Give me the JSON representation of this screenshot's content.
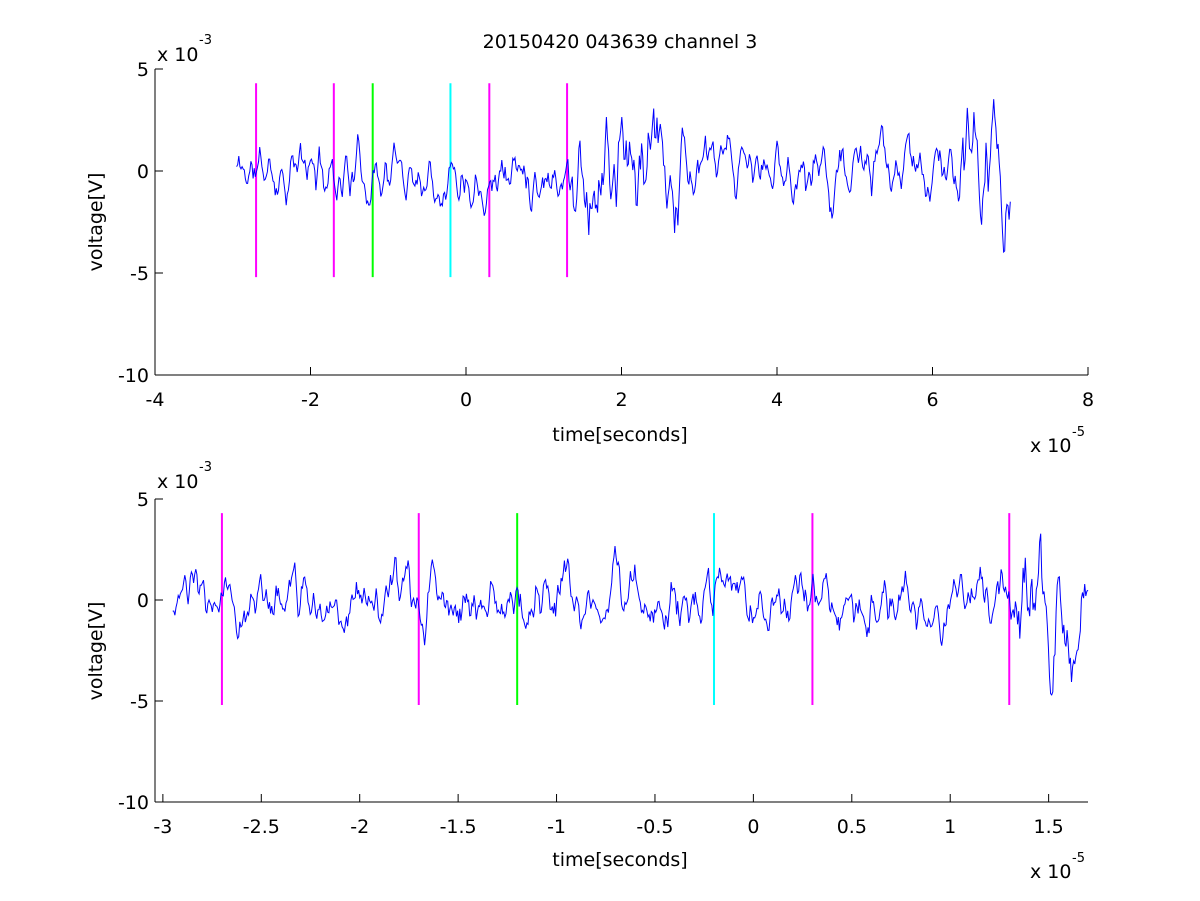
{
  "chart_data": [
    {
      "type": "line",
      "title": "20150420 043639 channel 3",
      "xlabel": "time[seconds]",
      "ylabel": "voltage[V]",
      "x_multiplier": "x 10",
      "x_exponent": "-5",
      "y_multiplier": "x 10",
      "y_exponent": "-3",
      "xlim": [
        -4,
        8
      ],
      "ylim": [
        -10,
        5
      ],
      "xticks": [
        -4,
        -2,
        0,
        2,
        4,
        6,
        8
      ],
      "xtick_labels": [
        "-4",
        "-2",
        "0",
        "2",
        "4",
        "6",
        "8"
      ],
      "yticks": [
        -10,
        -5,
        0,
        5
      ],
      "ytick_labels": [
        "-10",
        "-5",
        "0",
        "5"
      ],
      "grid": false,
      "signal": {
        "color": "#0000ff",
        "x_start": -2.95,
        "x_end": 7.0,
        "seed": 11,
        "loud_spans": [
          [
            1.3,
            2.8
          ],
          [
            6.3,
            7.0
          ]
        ]
      },
      "markers": [
        {
          "x": -2.7,
          "color": "#ff00ff"
        },
        {
          "x": -1.7,
          "color": "#ff00ff"
        },
        {
          "x": -1.2,
          "color": "#00ff00"
        },
        {
          "x": -0.2,
          "color": "#00ffff"
        },
        {
          "x": 0.3,
          "color": "#ff00ff"
        },
        {
          "x": 1.3,
          "color": "#ff00ff"
        }
      ],
      "marker_range": [
        -5.2,
        4.3
      ]
    },
    {
      "type": "line",
      "title": "",
      "xlabel": "time[seconds]",
      "ylabel": "voltage[V]",
      "x_multiplier": "x 10",
      "x_exponent": "-5",
      "y_multiplier": "x 10",
      "y_exponent": "-3",
      "xlim": [
        -3.04,
        1.7
      ],
      "ylim": [
        -10,
        5
      ],
      "xticks": [
        -3,
        -2.5,
        -2,
        -1.5,
        -1,
        -0.5,
        0,
        0.5,
        1,
        1.5
      ],
      "xtick_labels": [
        "-3",
        "-2.5",
        "-2",
        "-1.5",
        "-1",
        "-0.5",
        "0",
        "0.5",
        "1",
        "1.5"
      ],
      "yticks": [
        -10,
        -5,
        0,
        5
      ],
      "ytick_labels": [
        "-10",
        "-5",
        "0",
        "5"
      ],
      "grid": false,
      "signal": {
        "color": "#0000ff",
        "x_start": -2.95,
        "x_end": 1.7,
        "seed": 23,
        "loud_spans": [
          [
            1.35,
            1.7
          ]
        ]
      },
      "markers": [
        {
          "x": -2.7,
          "color": "#ff00ff"
        },
        {
          "x": -1.7,
          "color": "#ff00ff"
        },
        {
          "x": -1.2,
          "color": "#00ff00"
        },
        {
          "x": -0.2,
          "color": "#00ffff"
        },
        {
          "x": 0.3,
          "color": "#ff00ff"
        },
        {
          "x": 1.3,
          "color": "#ff00ff"
        }
      ],
      "marker_range": [
        -5.2,
        4.3
      ]
    }
  ]
}
